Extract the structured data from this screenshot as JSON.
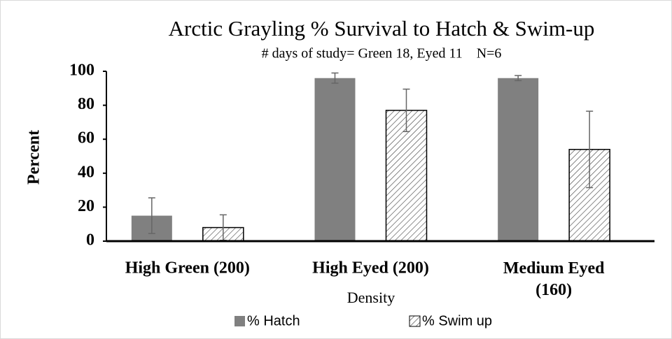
{
  "chart_data": {
    "type": "bar",
    "title": "Arctic Grayling % Survival to Hatch & Swim-up",
    "subtitle": "# days of study= Green 18, Eyed 11    N=6",
    "x_label": "Density",
    "y_label": "Percent",
    "categories": [
      "High Green (200)",
      "High Eyed (200)",
      "Medium Eyed (160)"
    ],
    "series": [
      {
        "name": "% Hatch",
        "color": "#808080",
        "pattern": "solid",
        "values": [
          15,
          96,
          96
        ],
        "errors": [
          10.5,
          3,
          1.5
        ]
      },
      {
        "name": "% Swim up",
        "color": "#404040",
        "pattern": "hatch",
        "values": [
          8,
          77,
          54
        ],
        "errors": [
          7.5,
          12.5,
          22.5
        ]
      }
    ],
    "ylim": [
      0,
      100
    ],
    "yticks": [
      0,
      20,
      40,
      60,
      80,
      100
    ],
    "grid": false,
    "legend": "bottom"
  }
}
